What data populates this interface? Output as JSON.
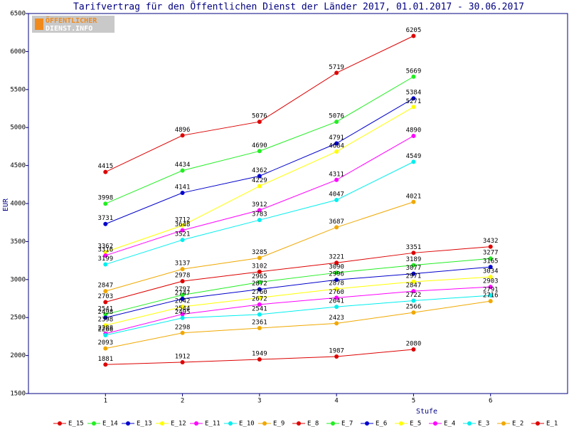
{
  "chart_data": {
    "type": "line",
    "title": "Tarifvertrag für den Öffentlichen Dienst der Länder 2017, 01.01.2017 - 30.06.2017",
    "logo": [
      "ÖFFENTLICHER",
      "DIENST.INFO"
    ],
    "x_label": "Stufe",
    "y_label": "EUR",
    "x": [
      1,
      2,
      3,
      4,
      5,
      6
    ],
    "xlim": [
      0,
      7
    ],
    "xticks": [
      1,
      2,
      3,
      4,
      5,
      6
    ],
    "ylim": [
      1500,
      6500
    ],
    "yticks": [
      1500,
      2000,
      2500,
      3000,
      3500,
      4000,
      4500,
      5000,
      5500,
      6000,
      6500
    ],
    "legend": "bottom",
    "series": [
      {
        "name": "E_15",
        "color": "#dd0000",
        "values": [
          4415,
          4896,
          5076,
          5719,
          6205,
          null
        ]
      },
      {
        "name": "E_14",
        "color": "#22ee22",
        "values": [
          3998,
          4434,
          4690,
          5076,
          5669,
          null
        ]
      },
      {
        "name": "E_13",
        "color": "#0000cc",
        "values": [
          3731,
          4141,
          4362,
          4791,
          5384,
          null
        ]
      },
      {
        "name": "E_12",
        "color": "#ffff00",
        "values": [
          3362,
          3712,
          4229,
          4684,
          5271,
          null
        ]
      },
      {
        "name": "E_11",
        "color": "#ff00ff",
        "values": [
          3316,
          3648,
          3912,
          4311,
          4890,
          null
        ]
      },
      {
        "name": "E_10",
        "color": "#00eeee",
        "values": [
          3199,
          3521,
          3783,
          4047,
          4549,
          null
        ]
      },
      {
        "name": "E_9",
        "color": "#f0a800",
        "values": [
          2847,
          3137,
          3285,
          3687,
          4021,
          null
        ]
      },
      {
        "name": "E_8",
        "color": "#dd0000",
        "values": [
          2703,
          2978,
          3102,
          3221,
          3351,
          3432
        ]
      },
      {
        "name": "E_7",
        "color": "#22ee22",
        "values": [
          2541,
          2797,
          2965,
          3090,
          3189,
          3277
        ]
      },
      {
        "name": "E_6",
        "color": "#0000cc",
        "values": [
          2498,
          2747,
          2872,
          2996,
          3077,
          3165
        ]
      },
      {
        "name": "E_5",
        "color": "#ffff00",
        "values": [
          2398,
          2642,
          2760,
          2878,
          2971,
          3034
        ]
      },
      {
        "name": "E_4",
        "color": "#ff00ff",
        "values": [
          2288,
          2544,
          2672,
          2760,
          2847,
          2903
        ]
      },
      {
        "name": "E_3",
        "color": "#00eeee",
        "values": [
          2268,
          2495,
          2541,
          2641,
          2722,
          2791
        ]
      },
      {
        "name": "E_2",
        "color": "#f0a800",
        "values": [
          2093,
          2298,
          2361,
          2423,
          2566,
          2716
        ]
      },
      {
        "name": "E_1",
        "color": "#dd0000",
        "values": [
          1881,
          1912,
          1949,
          1987,
          2080,
          null
        ]
      }
    ]
  }
}
